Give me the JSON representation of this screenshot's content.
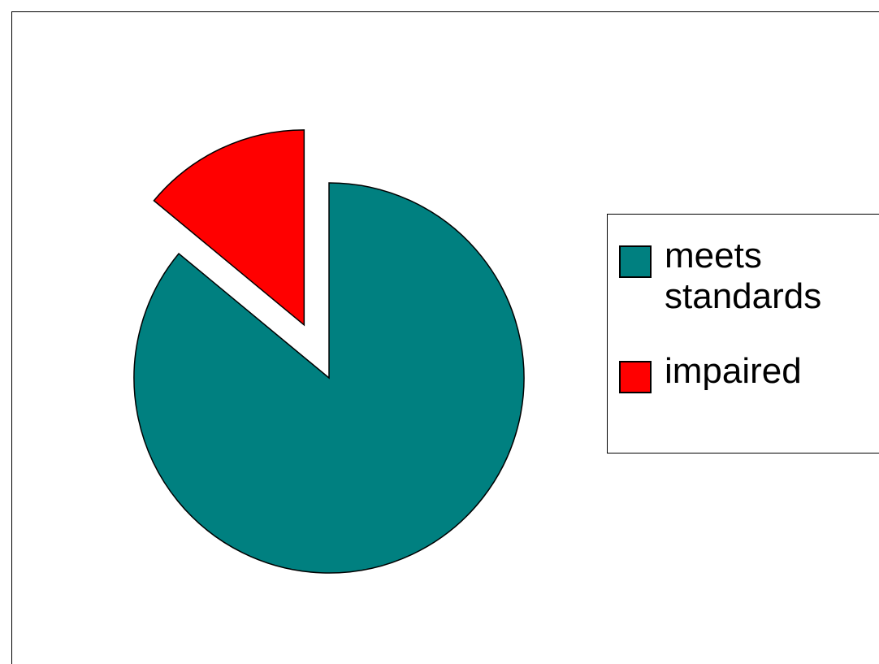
{
  "chart_data": {
    "type": "pie",
    "slices": [
      {
        "label": "meets standards",
        "value": 86,
        "color": "#008080",
        "exploded": false
      },
      {
        "label": "impaired",
        "value": 14,
        "color": "#ff0000",
        "exploded": true
      }
    ],
    "start_angle_deg": 90,
    "direction": "clockwise",
    "title": "",
    "legend": {
      "placement": "right",
      "labels": [
        "meets standards",
        "impaired"
      ]
    }
  }
}
